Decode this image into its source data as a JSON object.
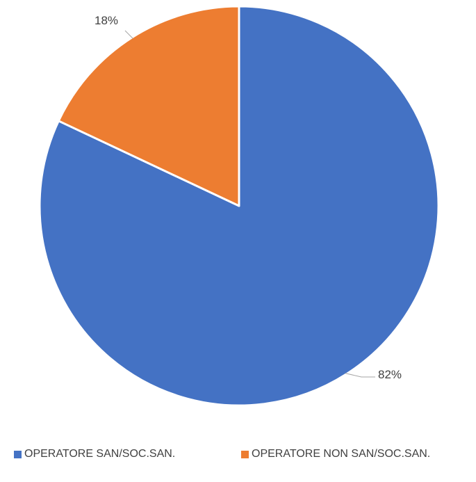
{
  "chart_data": {
    "type": "pie",
    "title": "",
    "categories": [
      "OPERATORE SAN/SOC.SAN.",
      "OPERATORE NON SAN/SOC.SAN."
    ],
    "values": [
      82,
      18
    ],
    "data_labels": [
      "82%",
      "18%"
    ],
    "colors": [
      "#4472C4",
      "#ED7D31"
    ],
    "legend_position": "bottom",
    "start_angle_deg": 0,
    "direction": "clockwise"
  }
}
